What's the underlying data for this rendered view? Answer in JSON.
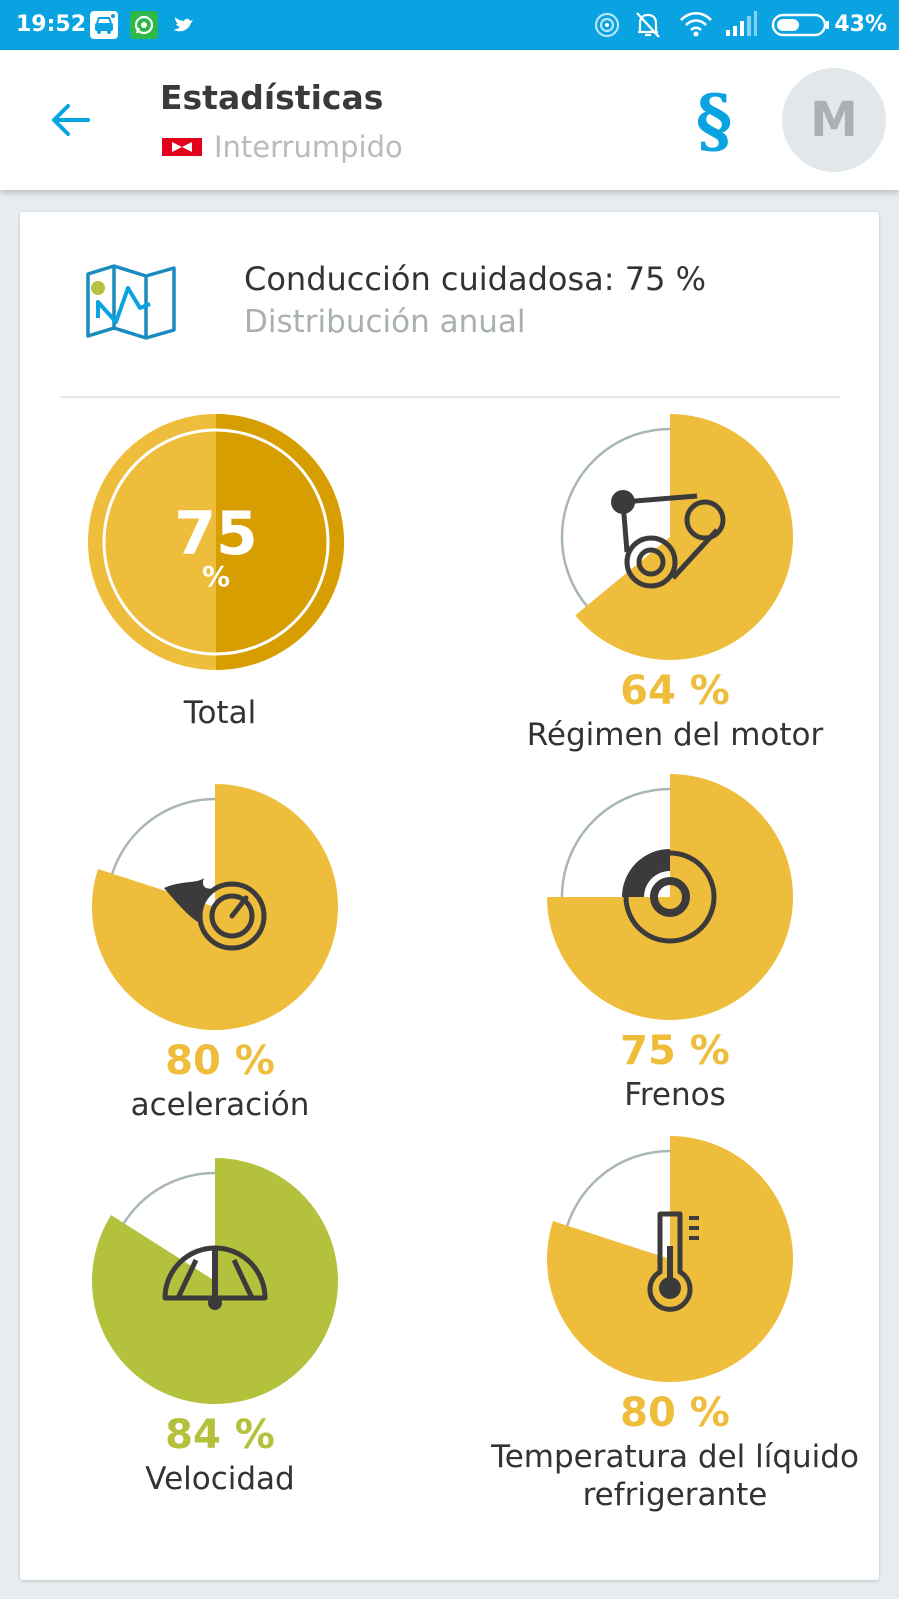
{
  "status_bar": {
    "time": "19:52",
    "battery": "43%",
    "notification_icons": [
      "car-wifi-icon",
      "whatsapp-icon",
      "twitter-icon"
    ],
    "system_icons": [
      "hotspot-icon",
      "mute-icon",
      "wifi-icon",
      "signal-icon",
      "battery-icon"
    ]
  },
  "header": {
    "title": "Estadísticas",
    "subtitle": "Interrumpido",
    "avatar_letter": "M",
    "section_symbol": "§"
  },
  "summary": {
    "title": "Conducción cuidadosa: 75 %",
    "subtitle": "Distribución anual"
  },
  "total": {
    "value": "75",
    "unit": "%",
    "label": "Total",
    "percent": 75
  },
  "categories": [
    {
      "id": "engine",
      "percent_text": "64 %",
      "label": "Régimen del motor",
      "percent": 64,
      "icon": "engine-belt-icon",
      "color": "#efbd3c"
    },
    {
      "id": "accel",
      "percent_text": "80 %",
      "label": "aceleración",
      "percent": 80,
      "icon": "speedometer-flame-icon",
      "color": "#efbd3c"
    },
    {
      "id": "brakes",
      "percent_text": "75 %",
      "label": "Frenos",
      "percent": 75,
      "icon": "brake-disc-icon",
      "color": "#efbd3c"
    },
    {
      "id": "speed",
      "percent_text": "84 %",
      "label": "Velocidad",
      "percent": 84,
      "icon": "speed-gauge-icon",
      "color": "#b3c13d"
    },
    {
      "id": "coolant",
      "percent_text": "80 %",
      "label": "Temperatura del líquido refrigerante",
      "percent": 80,
      "icon": "thermometer-icon",
      "color": "#efbd3c"
    }
  ],
  "colors": {
    "accent": "#0aa3e1",
    "yellow": "#efbd3c",
    "total_dark": "#d69e00",
    "total_light": "#efbd3c",
    "green": "#b3c13d",
    "ring": "#a9b6b8",
    "icon_dark": "#3b3b3b"
  }
}
